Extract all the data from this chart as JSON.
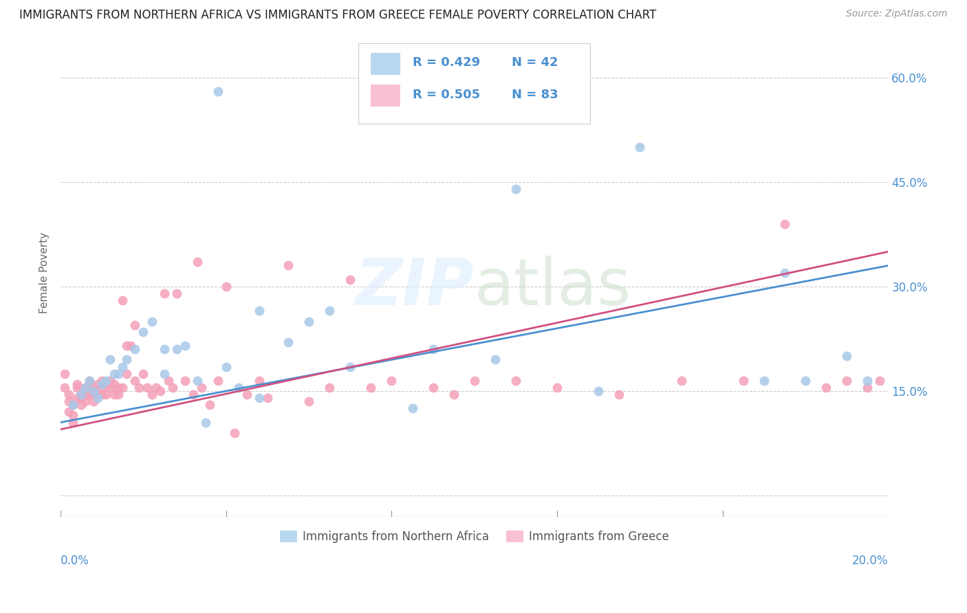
{
  "title": "IMMIGRANTS FROM NORTHERN AFRICA VS IMMIGRANTS FROM GREECE FEMALE POVERTY CORRELATION CHART",
  "source": "Source: ZipAtlas.com",
  "ylabel": "Female Poverty",
  "ytick_positions": [
    0.0,
    0.15,
    0.3,
    0.45,
    0.6
  ],
  "ytick_labels": [
    "",
    "15.0%",
    "30.0%",
    "45.0%",
    "60.0%"
  ],
  "xlim": [
    0.0,
    0.2
  ],
  "ylim": [
    -0.03,
    0.67
  ],
  "xtick_positions": [
    0.0,
    0.04,
    0.08,
    0.12,
    0.16,
    0.2
  ],
  "legend_r1": "R = 0.429",
  "legend_n1": "N = 42",
  "legend_r2": "R = 0.505",
  "legend_n2": "N = 83",
  "color_blue": "#a8c8e8",
  "color_pink": "#f4a0b8",
  "color_blue_line": "#4a90d0",
  "color_pink_line": "#d05080",
  "color_blue_text": "#4a90d0",
  "color_legend_blue": "#b8d8f0",
  "color_legend_pink": "#f8c0d0",
  "blue_x": [
    0.038,
    0.003,
    0.005,
    0.006,
    0.007,
    0.008,
    0.009,
    0.01,
    0.011,
    0.012,
    0.013,
    0.014,
    0.015,
    0.016,
    0.018,
    0.02,
    0.022,
    0.025,
    0.028,
    0.03,
    0.033,
    0.035,
    0.04,
    0.043,
    0.048,
    0.055,
    0.06,
    0.065,
    0.07,
    0.085,
    0.09,
    0.105,
    0.11,
    0.13,
    0.14,
    0.17,
    0.175,
    0.18,
    0.19,
    0.195,
    0.048,
    0.025
  ],
  "blue_y": [
    0.58,
    0.13,
    0.145,
    0.155,
    0.165,
    0.15,
    0.14,
    0.16,
    0.165,
    0.195,
    0.175,
    0.175,
    0.185,
    0.195,
    0.21,
    0.235,
    0.25,
    0.21,
    0.21,
    0.215,
    0.165,
    0.105,
    0.185,
    0.155,
    0.14,
    0.22,
    0.25,
    0.265,
    0.185,
    0.125,
    0.21,
    0.195,
    0.44,
    0.15,
    0.5,
    0.165,
    0.32,
    0.165,
    0.2,
    0.165,
    0.265,
    0.175
  ],
  "pink_x": [
    0.001,
    0.001,
    0.002,
    0.002,
    0.002,
    0.003,
    0.003,
    0.003,
    0.004,
    0.004,
    0.004,
    0.005,
    0.005,
    0.005,
    0.006,
    0.006,
    0.006,
    0.007,
    0.007,
    0.007,
    0.008,
    0.008,
    0.008,
    0.009,
    0.009,
    0.01,
    0.01,
    0.01,
    0.011,
    0.011,
    0.012,
    0.012,
    0.013,
    0.013,
    0.014,
    0.014,
    0.015,
    0.015,
    0.016,
    0.016,
    0.017,
    0.018,
    0.018,
    0.019,
    0.02,
    0.021,
    0.022,
    0.023,
    0.024,
    0.025,
    0.026,
    0.027,
    0.028,
    0.03,
    0.032,
    0.033,
    0.034,
    0.036,
    0.038,
    0.04,
    0.042,
    0.045,
    0.048,
    0.05,
    0.055,
    0.06,
    0.065,
    0.07,
    0.075,
    0.08,
    0.09,
    0.095,
    0.1,
    0.11,
    0.12,
    0.135,
    0.15,
    0.165,
    0.175,
    0.185,
    0.19,
    0.195,
    0.198
  ],
  "pink_y": [
    0.175,
    0.155,
    0.145,
    0.12,
    0.135,
    0.13,
    0.115,
    0.105,
    0.14,
    0.16,
    0.155,
    0.14,
    0.145,
    0.13,
    0.155,
    0.145,
    0.135,
    0.165,
    0.155,
    0.145,
    0.155,
    0.145,
    0.135,
    0.16,
    0.145,
    0.155,
    0.145,
    0.165,
    0.16,
    0.145,
    0.165,
    0.155,
    0.145,
    0.16,
    0.155,
    0.145,
    0.28,
    0.155,
    0.215,
    0.175,
    0.215,
    0.245,
    0.165,
    0.155,
    0.175,
    0.155,
    0.145,
    0.155,
    0.15,
    0.29,
    0.165,
    0.155,
    0.29,
    0.165,
    0.145,
    0.335,
    0.155,
    0.13,
    0.165,
    0.3,
    0.09,
    0.145,
    0.165,
    0.14,
    0.33,
    0.135,
    0.155,
    0.31,
    0.155,
    0.165,
    0.155,
    0.145,
    0.165,
    0.165,
    0.155,
    0.145,
    0.165,
    0.165,
    0.39,
    0.155,
    0.165,
    0.155,
    0.165
  ],
  "blue_line_x": [
    0.0,
    0.2
  ],
  "blue_line_y": [
    0.105,
    0.33
  ],
  "pink_line_x": [
    0.0,
    0.2
  ],
  "pink_line_y": [
    0.095,
    0.35
  ]
}
